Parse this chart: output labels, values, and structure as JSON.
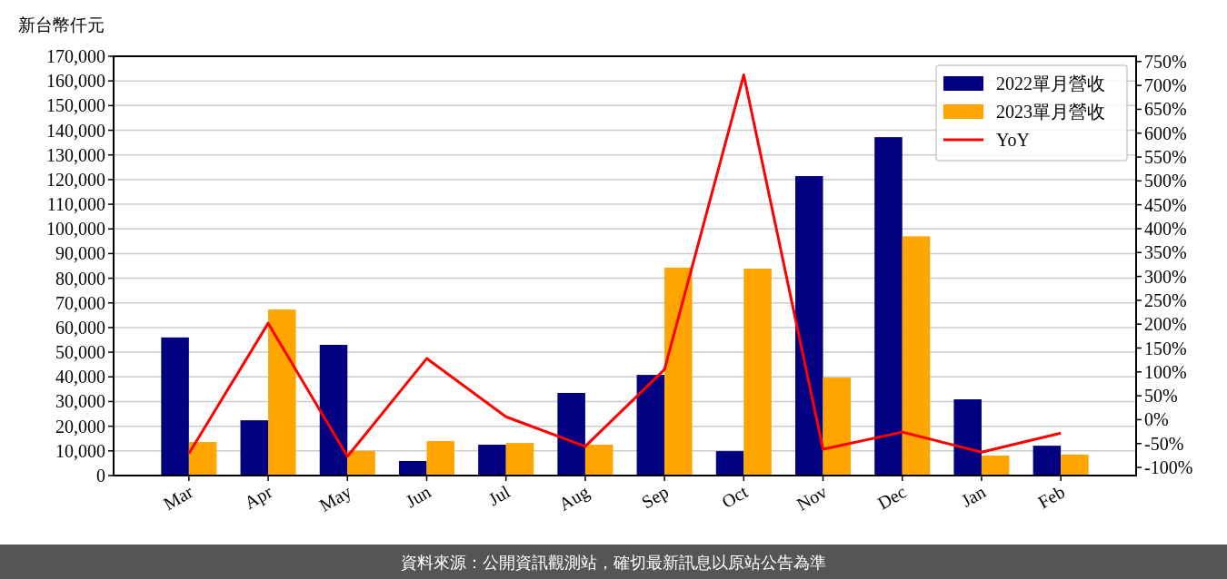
{
  "chart_data": {
    "type": "bar",
    "ylabel": "新台幣仟元",
    "categories": [
      "Mar",
      "Apr",
      "May",
      "Jun",
      "Jul",
      "Aug",
      "Sep",
      "Oct",
      "Nov",
      "Dec",
      "Jan",
      "Feb"
    ],
    "series": [
      {
        "name": "2022單月營收",
        "color": "#000080",
        "values": [
          56000,
          22400,
          53000,
          5900,
          12500,
          33500,
          40800,
          9900,
          121400,
          137200,
          30900,
          12100
        ]
      },
      {
        "name": "2023單月營收",
        "color": "#ffa500",
        "values": [
          13600,
          67300,
          10000,
          14000,
          13200,
          12500,
          84300,
          83900,
          39700,
          97000,
          8100,
          8500
        ]
      },
      {
        "name": "YoY",
        "type": "line",
        "axis": "y2",
        "color": "#ff0000",
        "values": [
          -71,
          202,
          -77,
          128,
          6,
          -56,
          105,
          722,
          -62,
          -26,
          -68,
          -28
        ]
      }
    ],
    "ylim": [
      0,
      170000
    ],
    "yticks": [
      {
        "value": 0,
        "label": "0"
      },
      {
        "value": 10000,
        "label": "10,000"
      },
      {
        "value": 20000,
        "label": "20,000"
      },
      {
        "value": 30000,
        "label": "30,000"
      },
      {
        "value": 40000,
        "label": "40,000"
      },
      {
        "value": 50000,
        "label": "50,000"
      },
      {
        "value": 60000,
        "label": "60,000"
      },
      {
        "value": 70000,
        "label": "70,000"
      },
      {
        "value": 80000,
        "label": "80,000"
      },
      {
        "value": 90000,
        "label": "90,000"
      },
      {
        "value": 100000,
        "label": "100,000"
      },
      {
        "value": 110000,
        "label": "110,000"
      },
      {
        "value": 120000,
        "label": "120,000"
      },
      {
        "value": 130000,
        "label": "130,000"
      },
      {
        "value": 140000,
        "label": "140,000"
      },
      {
        "value": 150000,
        "label": "150,000"
      },
      {
        "value": 160000,
        "label": "160,000"
      },
      {
        "value": 170000,
        "label": "170,000"
      }
    ],
    "y2lim": [
      -117,
      761
    ],
    "y2ticks": [
      {
        "value": -100,
        "label": "-100%"
      },
      {
        "value": -50,
        "label": "-50%"
      },
      {
        "value": 0,
        "label": "0%"
      },
      {
        "value": 50,
        "label": "50%"
      },
      {
        "value": 100,
        "label": "100%"
      },
      {
        "value": 150,
        "label": "150%"
      },
      {
        "value": 200,
        "label": "200%"
      },
      {
        "value": 250,
        "label": "250%"
      },
      {
        "value": 300,
        "label": "300%"
      },
      {
        "value": 350,
        "label": "350%"
      },
      {
        "value": 400,
        "label": "400%"
      },
      {
        "value": 450,
        "label": "450%"
      },
      {
        "value": 500,
        "label": "500%"
      },
      {
        "value": 550,
        "label": "550%"
      },
      {
        "value": 600,
        "label": "600%"
      },
      {
        "value": 650,
        "label": "650%"
      },
      {
        "value": 700,
        "label": "700%"
      },
      {
        "value": 750,
        "label": "750%"
      }
    ],
    "grid": "y",
    "legend": "top right",
    "annotations": [
      "資料來源：公開資訊觀測站，確切最新訊息以原站公告為準"
    ]
  }
}
